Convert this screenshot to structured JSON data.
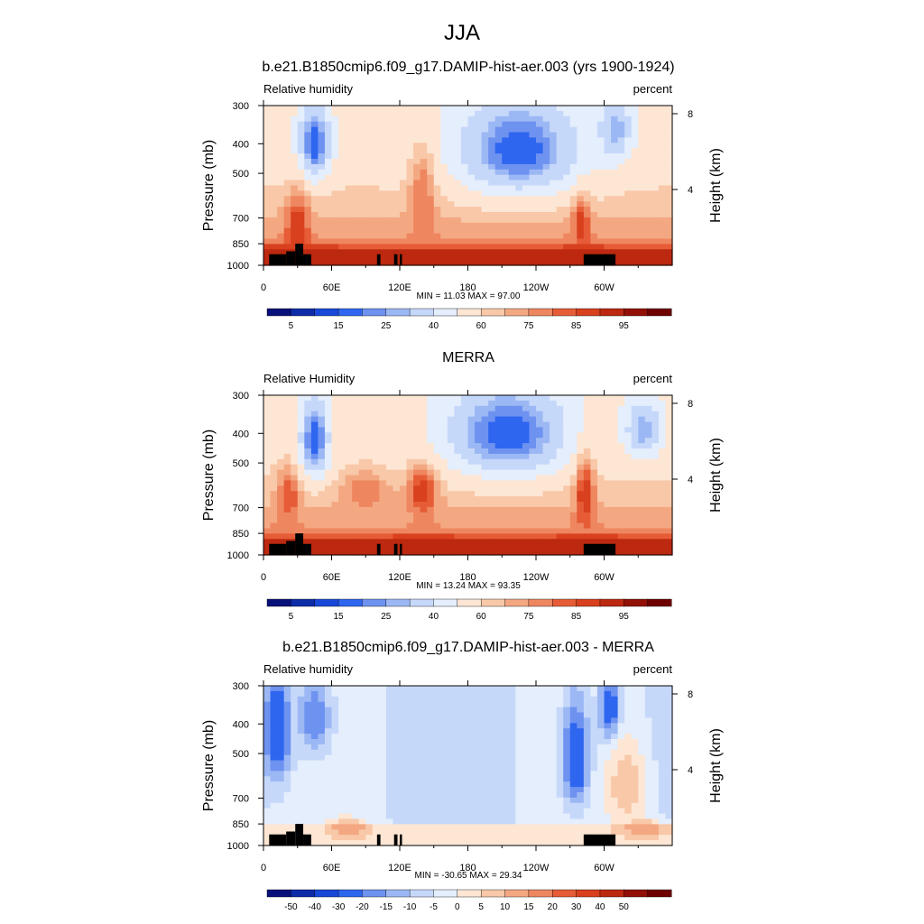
{
  "figure": {
    "title": "JJA"
  },
  "colors": {
    "abs_levels": [
      "#08107a",
      "#0d2ca8",
      "#1848d8",
      "#2e66f0",
      "#6e92f0",
      "#9cb8f4",
      "#c6d8fa",
      "#e4eefc",
      "#fde6d4",
      "#f8c8a8",
      "#f4a882",
      "#ee8660",
      "#e65c36",
      "#d8401e",
      "#bc2810",
      "#921006",
      "#6e0000"
    ],
    "diff_levels": [
      "#08107a",
      "#0d2ca8",
      "#1848d8",
      "#2e66f0",
      "#6e92f0",
      "#9cb8f4",
      "#c6d8fa",
      "#e4eefc",
      "#fde6d4",
      "#f8c8a8",
      "#f4a882",
      "#ee8660",
      "#e65c36",
      "#d8401e",
      "#bc2810",
      "#921006",
      "#6e0000"
    ],
    "topography": "#000000"
  },
  "panels": [
    {
      "title": "b.e21.B1850cmip6.f09_g17.DAMIP-hist-aer.003 (yrs 1900-1924)",
      "left_label": "Relative humidity",
      "right_label": "percent",
      "stats": "MIN =  11.03  MAX =  97.00",
      "colorbar_labels": [
        "5",
        "15",
        "25",
        "40",
        "60",
        "75",
        "85",
        "95"
      ]
    },
    {
      "title": "MERRA",
      "left_label": "Relative Humidity",
      "right_label": "percent",
      "stats": "MIN =  13.24  MAX =  93.35",
      "colorbar_labels": [
        "5",
        "15",
        "25",
        "40",
        "60",
        "75",
        "85",
        "95"
      ]
    },
    {
      "title": "b.e21.B1850cmip6.f09_g17.DAMIP-hist-aer.003 - MERRA",
      "left_label": "Relative humidity",
      "right_label": "percent",
      "stats": "MIN = -30.65  MAX =  29.34",
      "colorbar_labels": [
        "-50",
        "-40",
        "-30",
        "-20",
        "-15",
        "-10",
        "-5",
        "0",
        "5",
        "10",
        "15",
        "20",
        "30",
        "40",
        "50"
      ]
    }
  ],
  "chart_data": [
    {
      "type": "heatmap",
      "title": "b.e21.B1850cmip6.f09_g17.DAMIP-hist-aer.003 (yrs 1900-1924)",
      "ylabel": "Pressure (mb)",
      "y2label": "Height (km)",
      "x_ticks": [
        "0",
        "60E",
        "120E",
        "180",
        "120W",
        "60W"
      ],
      "x_tick_values": [
        0,
        60,
        120,
        180,
        240,
        300
      ],
      "xlim": [
        0,
        360
      ],
      "y_ticks": [
        "300",
        "400",
        "500",
        "700",
        "850",
        "1000"
      ],
      "y_tick_values": [
        300,
        400,
        500,
        700,
        850,
        1000
      ],
      "ylim": [
        1000,
        300
      ],
      "y2_ticks": [
        "4",
        "8"
      ],
      "levels": [
        5,
        10,
        15,
        20,
        25,
        30,
        40,
        50,
        60,
        65,
        70,
        75,
        80,
        85,
        90,
        95
      ],
      "min": 11.03,
      "max": 97.0,
      "features": [
        {
          "lon": 45,
          "p": 400,
          "value": 15,
          "sx": 10,
          "sp": 80
        },
        {
          "lon": 225,
          "p": 420,
          "value": 15,
          "sx": 38,
          "sp": 110
        },
        {
          "lon": 310,
          "p": 360,
          "value": 25,
          "sx": 10,
          "sp": 60
        },
        {
          "lon": 140,
          "p": 600,
          "value": 75,
          "sx": 8,
          "sp": 140
        },
        {
          "lon": 280,
          "p": 740,
          "value": 85,
          "sx": 5,
          "sp": 100
        },
        {
          "lon": 30,
          "p": 750,
          "value": 85,
          "sx": 7,
          "sp": 120
        }
      ]
    },
    {
      "type": "heatmap",
      "title": "MERRA",
      "ylabel": "Pressure (mb)",
      "y2label": "Height (km)",
      "x_ticks": [
        "0",
        "60E",
        "120E",
        "180",
        "120W",
        "60W"
      ],
      "x_tick_values": [
        0,
        60,
        120,
        180,
        240,
        300
      ],
      "xlim": [
        0,
        360
      ],
      "y_ticks": [
        "300",
        "400",
        "500",
        "700",
        "850",
        "1000"
      ],
      "y_tick_values": [
        300,
        400,
        500,
        700,
        850,
        1000
      ],
      "ylim": [
        1000,
        300
      ],
      "y2_ticks": [
        "4",
        "8"
      ],
      "levels": [
        5,
        10,
        15,
        20,
        25,
        30,
        40,
        50,
        60,
        65,
        70,
        75,
        80,
        85,
        90,
        95
      ],
      "min": 13.24,
      "max": 93.35,
      "features": [
        {
          "lon": 45,
          "p": 420,
          "value": 15,
          "sx": 9,
          "sp": 90
        },
        {
          "lon": 215,
          "p": 400,
          "value": 15,
          "sx": 38,
          "sp": 100
        },
        {
          "lon": 335,
          "p": 390,
          "value": 25,
          "sx": 12,
          "sp": 60
        },
        {
          "lon": 140,
          "p": 620,
          "value": 85,
          "sx": 9,
          "sp": 80
        },
        {
          "lon": 90,
          "p": 620,
          "value": 75,
          "sx": 14,
          "sp": 60
        },
        {
          "lon": 283,
          "p": 640,
          "value": 85,
          "sx": 6,
          "sp": 120
        },
        {
          "lon": 22,
          "p": 650,
          "value": 80,
          "sx": 7,
          "sp": 90
        }
      ]
    },
    {
      "type": "heatmap",
      "title": "b.e21.B1850cmip6.f09_g17.DAMIP-hist-aer.003 - MERRA",
      "ylabel": "Pressure (mb)",
      "y2label": "Height (km)",
      "x_ticks": [
        "0",
        "60E",
        "120E",
        "180",
        "120W",
        "60W"
      ],
      "x_tick_values": [
        0,
        60,
        120,
        180,
        240,
        300
      ],
      "xlim": [
        0,
        360
      ],
      "y_ticks": [
        "300",
        "400",
        "500",
        "700",
        "850",
        "1000"
      ],
      "y_tick_values": [
        300,
        400,
        500,
        700,
        850,
        1000
      ],
      "ylim": [
        1000,
        300
      ],
      "y2_ticks": [
        "4",
        "8"
      ],
      "levels": [
        -50,
        -40,
        -30,
        -20,
        -15,
        -10,
        -5,
        0,
        5,
        10,
        15,
        20,
        30,
        40,
        50
      ],
      "min": -30.65,
      "max": 29.34,
      "features": [
        {
          "lon": 12,
          "p": 420,
          "value": -30,
          "sx": 8,
          "sp": 120
        },
        {
          "lon": 45,
          "p": 380,
          "value": -20,
          "sx": 10,
          "sp": 80
        },
        {
          "lon": 275,
          "p": 520,
          "value": -30,
          "sx": 8,
          "sp": 140
        },
        {
          "lon": 305,
          "p": 360,
          "value": -30,
          "sx": 6,
          "sp": 60
        },
        {
          "lon": 75,
          "p": 880,
          "value": 15,
          "sx": 12,
          "sp": 40
        },
        {
          "lon": 335,
          "p": 880,
          "value": 15,
          "sx": 14,
          "sp": 40
        },
        {
          "lon": 320,
          "p": 640,
          "value": 10,
          "sx": 12,
          "sp": 140
        }
      ]
    }
  ]
}
